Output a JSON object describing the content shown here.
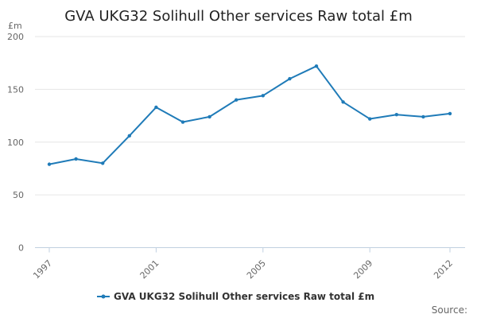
{
  "chart_data": {
    "type": "line",
    "title": "GVA UKG32 Solihull Other services Raw total £m",
    "y_unit_label": "£m",
    "ylim": [
      0,
      200
    ],
    "y_ticks": [
      "0",
      "50",
      "100",
      "150",
      "200"
    ],
    "x_tick_labels": [
      "1997",
      "2001",
      "2005",
      "2009",
      "2012"
    ],
    "grid": true,
    "legend_position": "bottom",
    "x": [
      1997,
      1998,
      1999,
      2000,
      2001,
      2002,
      2003,
      2004,
      2005,
      2006,
      2007,
      2008,
      2009,
      2010,
      2011,
      2012
    ],
    "series": [
      {
        "name": "GVA UKG32 Solihull Other services Raw total £m",
        "color": "#1f7bb8",
        "values": [
          79,
          84,
          80,
          106,
          133,
          119,
          124,
          140,
          144,
          160,
          172,
          138,
          122,
          126,
          124,
          127
        ]
      }
    ],
    "source_label": "Source:"
  }
}
